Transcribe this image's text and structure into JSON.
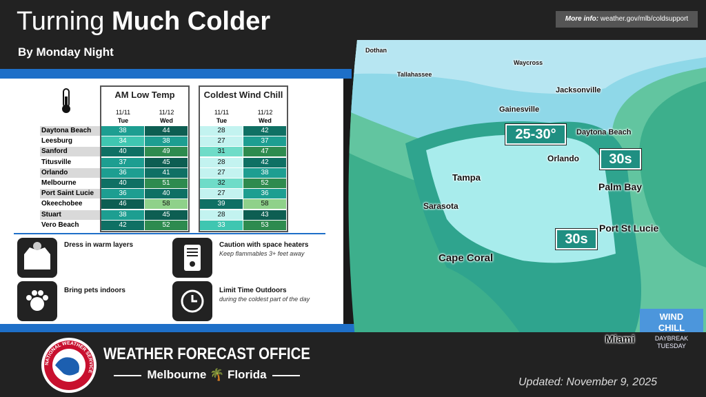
{
  "header": {
    "title_light": "Turning",
    "title_bold": "Much Colder",
    "subtitle": "By Monday Night",
    "more_info_label": "More info:",
    "more_info_url": "weather.gov/mlb/coldsupport"
  },
  "table": {
    "groups": [
      {
        "title": "AM Low Temp",
        "columns": [
          {
            "date": "11/11",
            "day": "Tue"
          },
          {
            "date": "11/12",
            "day": "Wed"
          }
        ]
      },
      {
        "title": "Coldest Wind Chill",
        "columns": [
          {
            "date": "11/11",
            "day": "Tue"
          },
          {
            "date": "11/12",
            "day": "Wed"
          }
        ]
      }
    ],
    "rows": [
      {
        "city": "Daytona Beach",
        "values": [
          38,
          44,
          28,
          42
        ]
      },
      {
        "city": "Leesburg",
        "values": [
          34,
          38,
          27,
          37
        ]
      },
      {
        "city": "Sanford",
        "values": [
          40,
          49,
          31,
          47
        ]
      },
      {
        "city": "Titusville",
        "values": [
          37,
          45,
          28,
          42
        ]
      },
      {
        "city": "Orlando",
        "values": [
          36,
          41,
          27,
          38
        ]
      },
      {
        "city": "Melbourne",
        "values": [
          40,
          51,
          32,
          52
        ]
      },
      {
        "city": "Port Saint Lucie",
        "values": [
          36,
          40,
          27,
          36
        ]
      },
      {
        "city": "Okeechobee",
        "values": [
          46,
          58,
          39,
          58
        ]
      },
      {
        "city": "Stuart",
        "values": [
          38,
          45,
          28,
          43
        ]
      },
      {
        "city": "Vero Beach",
        "values": [
          42,
          52,
          33,
          53
        ]
      }
    ]
  },
  "tips": [
    {
      "title": "Dress in warm layers"
    },
    {
      "title": "Caution with space heaters",
      "detail": "Keep flammables 3+ feet away"
    },
    {
      "title": "Bring pets indoors"
    },
    {
      "title": "Limit Time Outdoors",
      "detail": "during the coldest part of the day"
    }
  ],
  "map": {
    "places": [
      "Dothan",
      "Tallahassee",
      "Waycross",
      "Jacksonville",
      "Gainesville",
      "Daytona Beach",
      "Orlando",
      "Tampa",
      "Palm Bay",
      "Sarasota",
      "Port St Lucie",
      "Cape Coral",
      "Miami"
    ],
    "badges": [
      "25-30°",
      "30s",
      "30s"
    ],
    "legend": {
      "title_1": "WIND",
      "title_2": "CHILL",
      "sub_1": "DAYBREAK",
      "sub_2": "TUESDAY"
    }
  },
  "footer": {
    "logo": "NATIONAL WEATHER SERVICE",
    "office": "WEATHER FORECAST OFFICE",
    "city": "Melbourne",
    "state": "Florida",
    "updated": "Updated: November 9, 2025"
  }
}
